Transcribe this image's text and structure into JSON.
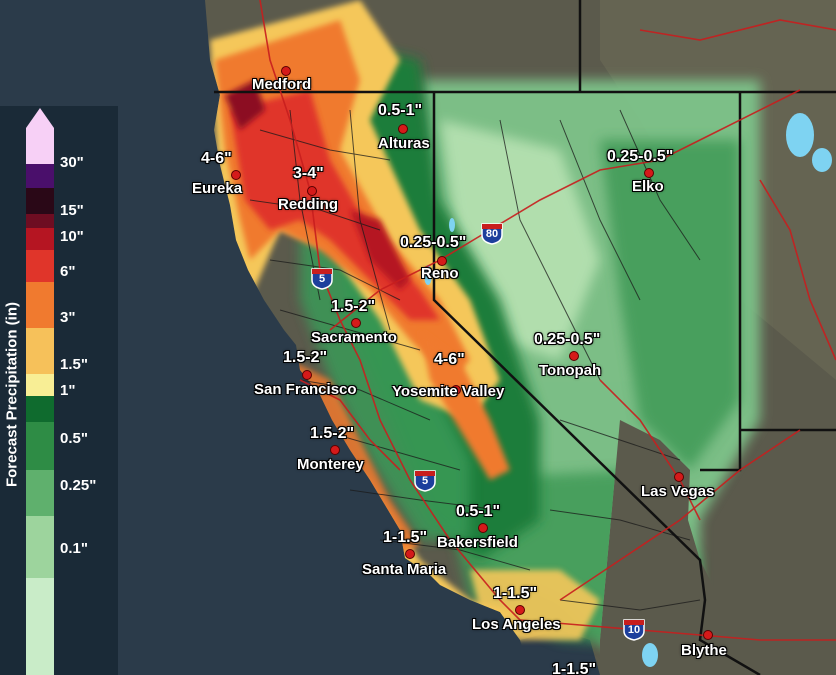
{
  "legend": {
    "title": "Forecast Precipitation (in)",
    "ticks": [
      "30\"",
      "15\"",
      "10\"",
      "6\"",
      "3\"",
      "1.5\"",
      "1\"",
      "0.5\"",
      "0.25\"",
      "0.1\""
    ],
    "colors": [
      "#f7d0f6",
      "#4a0f6b",
      "#2a0817",
      "#6e0d22",
      "#b51522",
      "#e0352a",
      "#f07a2f",
      "#f6c15a",
      "#f8ee95",
      "#0f6b2e",
      "#2e8c45",
      "#5fb06d",
      "#9dd49d",
      "#c9ecc8"
    ]
  },
  "cities": [
    {
      "name": "Medford"
    },
    {
      "name": "Alturas"
    },
    {
      "name": "Eureka"
    },
    {
      "name": "Redding"
    },
    {
      "name": "Elko"
    },
    {
      "name": "Reno"
    },
    {
      "name": "Sacramento"
    },
    {
      "name": "Tonopah"
    },
    {
      "name": "San Francisco"
    },
    {
      "name": "Yosemite Valley"
    },
    {
      "name": "Monterey"
    },
    {
      "name": "Las Vegas"
    },
    {
      "name": "Bakersfield"
    },
    {
      "name": "Santa Maria"
    },
    {
      "name": "Los Angeles"
    },
    {
      "name": "Blythe"
    }
  ],
  "amounts": [
    "0.5-1\"",
    "4-6\"",
    "3-4\"",
    "0.25-0.5\"",
    "0.25-0.5\"",
    "1.5-2\"",
    "0.25-0.5\"",
    "1.5-2\"",
    "4-6\"",
    "1.5-2\"",
    "0.5-1\"",
    "1-1.5\"",
    "1-1.5\"",
    "1-1.5\""
  ],
  "interstates": [
    "80",
    "5",
    "5",
    "10"
  ]
}
